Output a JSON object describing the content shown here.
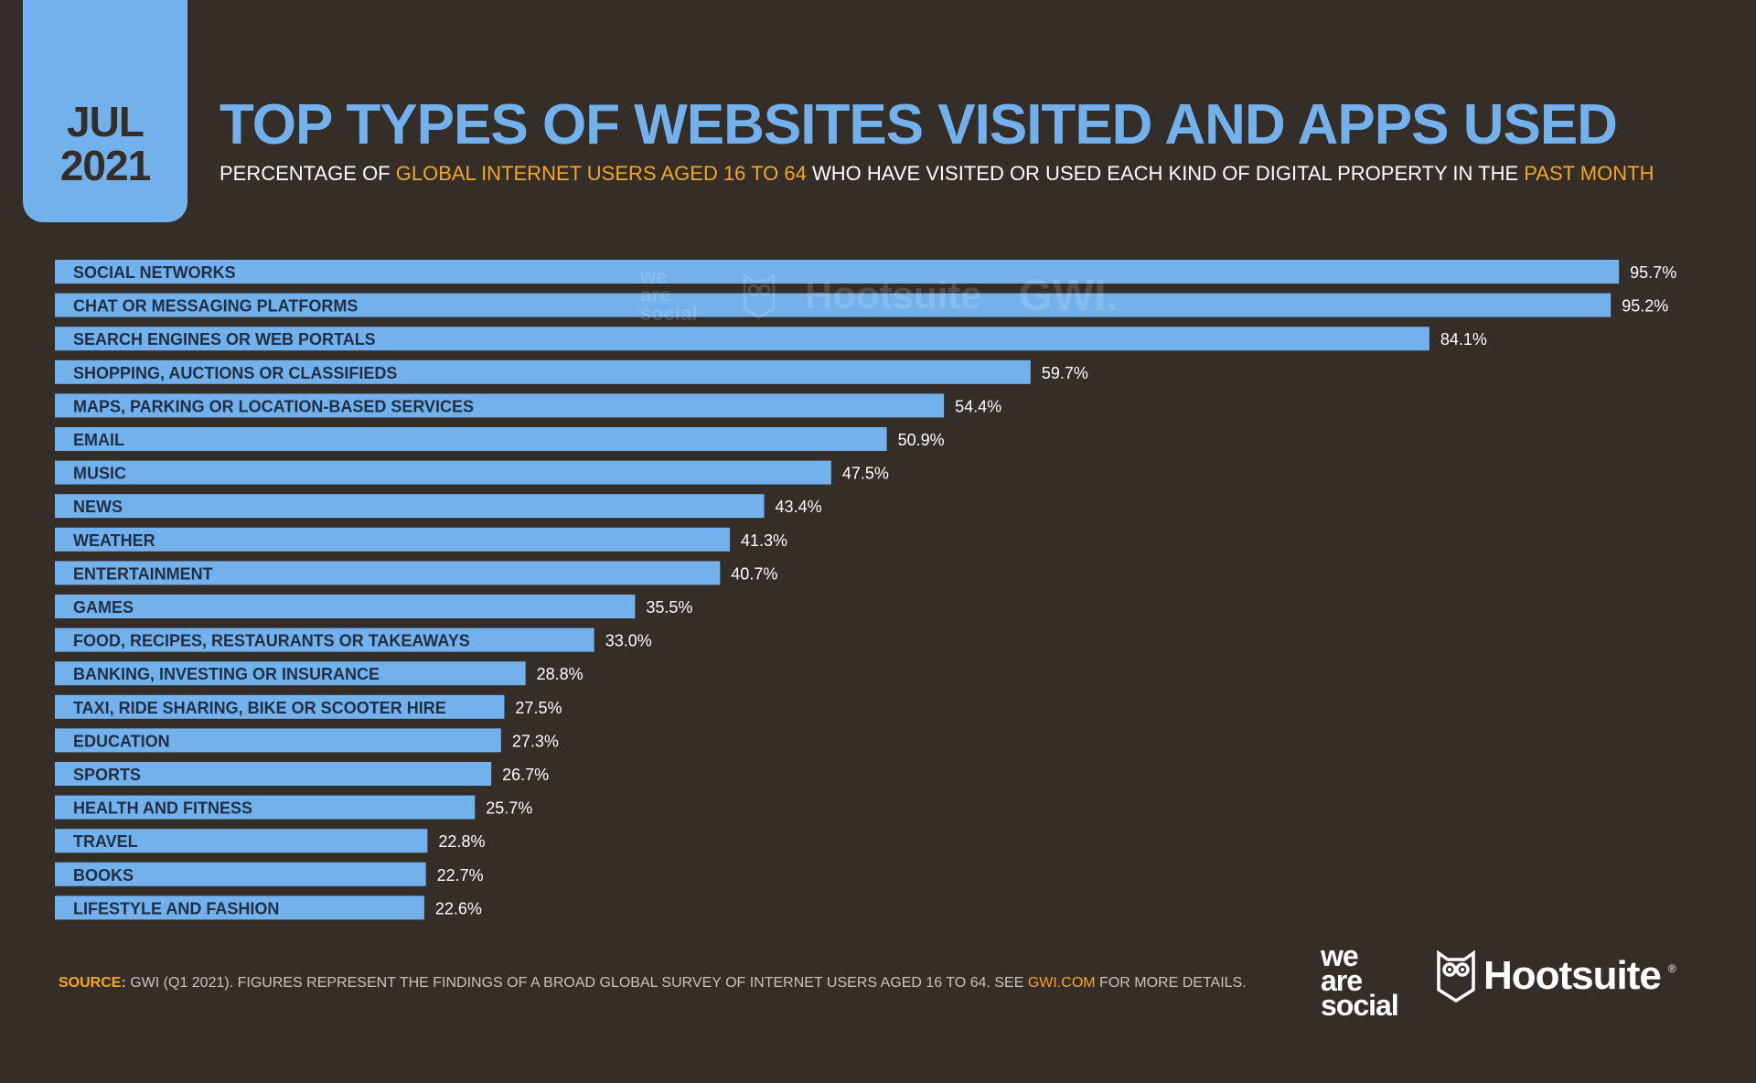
{
  "date_tab": {
    "month": "JUL",
    "year": "2021"
  },
  "header": {
    "title": "TOP TYPES OF WEBSITES VISITED AND APPS USED",
    "subtitle_parts": [
      {
        "text": "PERCENTAGE OF ",
        "highlight": false
      },
      {
        "text": "GLOBAL INTERNET USERS AGED  16 TO 64",
        "highlight": true
      },
      {
        "text": " WHO HAVE VISITED OR USED EACH KIND OF DIGITAL PROPERTY IN THE ",
        "highlight": false
      },
      {
        "text": "PAST MONTH",
        "highlight": true
      }
    ]
  },
  "watermark": {
    "brand1": [
      "we",
      "are",
      "social"
    ],
    "brand2": "Hootsuite",
    "brand3": "GWI."
  },
  "colors": {
    "background": "#352d28",
    "bar": "#72b1ec",
    "accent": "#f5a623",
    "label_text": "#1f2f45",
    "value_text": "#ffffff"
  },
  "chart_data": {
    "type": "bar",
    "orientation": "horizontal",
    "title": "TOP TYPES OF WEBSITES VISITED AND APPS USED",
    "xlim": [
      0,
      100
    ],
    "grid": false,
    "value_suffix": "%",
    "categories": [
      "SOCIAL NETWORKS",
      "CHAT OR MESSAGING PLATFORMS",
      "SEARCH ENGINES OR WEB PORTALS",
      "SHOPPING, AUCTIONS OR CLASSIFIEDS",
      "MAPS, PARKING OR LOCATION-BASED SERVICES",
      "EMAIL",
      "MUSIC",
      "NEWS",
      "WEATHER",
      "ENTERTAINMENT",
      "GAMES",
      "FOOD, RECIPES, RESTAURANTS OR TAKEAWAYS",
      "BANKING, INVESTING OR INSURANCE",
      "TAXI, RIDE SHARING, BIKE OR SCOOTER HIRE",
      "EDUCATION",
      "SPORTS",
      "HEALTH AND FITNESS",
      "TRAVEL",
      "BOOKS",
      "LIFESTYLE AND FASHION"
    ],
    "values": [
      95.7,
      95.2,
      84.1,
      59.7,
      54.4,
      50.9,
      47.5,
      43.4,
      41.3,
      40.7,
      35.5,
      33.0,
      28.8,
      27.5,
      27.3,
      26.7,
      25.7,
      22.8,
      22.7,
      22.6
    ],
    "value_labels": [
      "95.7%",
      "95.2%",
      "84.1%",
      "59.7%",
      "54.4%",
      "50.9%",
      "47.5%",
      "43.4%",
      "41.3%",
      "40.7%",
      "35.5%",
      "33.0%",
      "28.8%",
      "27.5%",
      "27.3%",
      "26.7%",
      "25.7%",
      "22.8%",
      "22.7%",
      "22.6%"
    ]
  },
  "footer": {
    "source_label": "SOURCE:",
    "source_text": " GWI (Q1 2021). FIGURES REPRESENT THE FINDINGS OF A BROAD GLOBAL SURVEY OF INTERNET USERS AGED 16 TO 64. SEE ",
    "source_link": "GWI.COM",
    "source_tail": " FOR MORE DETAILS.",
    "logo1_lines": [
      "we",
      "are",
      "social"
    ],
    "logo2": "Hootsuite",
    "logo2_mark": "®"
  }
}
